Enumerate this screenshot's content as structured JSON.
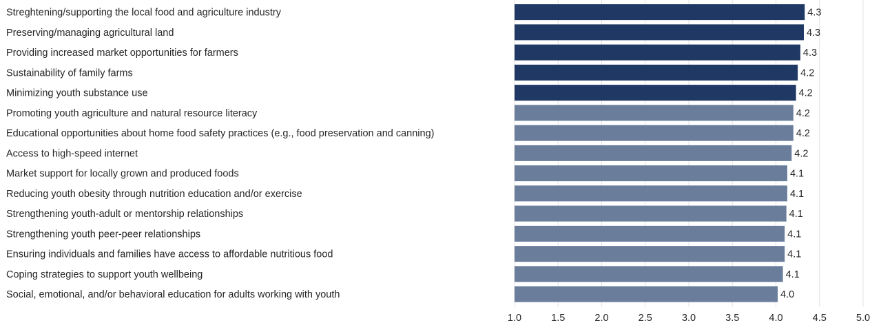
{
  "chart_data": {
    "type": "bar",
    "orientation": "horizontal",
    "categories": [
      "Streghtening/supporting the local food and agriculture industry",
      "Preserving/managing agricultural land",
      "Providing increased market opportunities for farmers",
      "Sustainability of family farms",
      "Minimizing youth substance use",
      "Promoting youth agriculture and natural resource literacy",
      "Educational opportunities about home food safety practices (e.g., food preservation and canning)",
      "Access to high-speed internet",
      "Market support for locally grown and produced foods",
      "Reducing youth obesity through nutrition education and/or exercise",
      "Strengthening youth-adult or mentorship relationships",
      "Strengthening youth peer-peer relationships",
      "Ensuring individuals and families have access to affordable nutritious food",
      "Coping strategies to support youth wellbeing",
      "Social, emotional, and/or behavioral education for adults working with youth"
    ],
    "values": [
      4.33,
      4.32,
      4.28,
      4.25,
      4.23,
      4.2,
      4.2,
      4.18,
      4.13,
      4.13,
      4.12,
      4.1,
      4.1,
      4.08,
      4.02
    ],
    "value_labels": [
      "4.3",
      "4.3",
      "4.3",
      "4.2",
      "4.2",
      "4.2",
      "4.2",
      "4.2",
      "4.1",
      "4.1",
      "4.1",
      "4.1",
      "4.1",
      "4.1",
      "4.0"
    ],
    "highlight_count": 5,
    "colors": {
      "highlight": "#1f3864",
      "default": "#6a7e9c"
    },
    "xlim": [
      1.0,
      5.0
    ],
    "xticks": [
      "1.0",
      "1.5",
      "2.0",
      "2.5",
      "3.0",
      "3.5",
      "4.0",
      "4.5",
      "5.0"
    ],
    "grid": "vertical",
    "title": "",
    "xlabel": "",
    "ylabel": ""
  }
}
